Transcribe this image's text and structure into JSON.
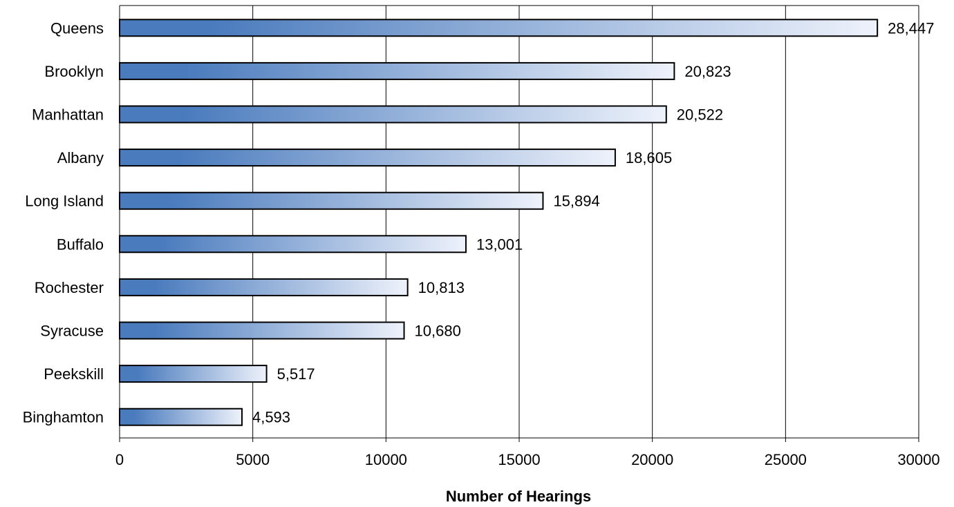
{
  "chart_data": {
    "type": "bar",
    "orientation": "horizontal",
    "title": "",
    "xlabel": "Number of Hearings",
    "ylabel": "",
    "categories": [
      "Queens",
      "Brooklyn",
      "Manhattan",
      "Albany",
      "Long Island",
      "Buffalo",
      "Rochester",
      "Syracuse",
      "Peekskill",
      "Binghamton"
    ],
    "values": [
      28447,
      20823,
      20522,
      18605,
      15894,
      13001,
      10813,
      10680,
      5517,
      4593
    ],
    "value_labels": [
      "28,447",
      "20,823",
      "20,522",
      "18,605",
      "15,894",
      "13,001",
      "10,813",
      "10,680",
      "5,517",
      "4,593"
    ],
    "xlim": [
      0,
      30000
    ],
    "xticks": [
      0,
      5000,
      10000,
      15000,
      20000,
      25000,
      30000
    ],
    "xtick_labels": [
      "0",
      "5000",
      "10000",
      "15000",
      "20000",
      "25000",
      "30000"
    ],
    "grid": "vertical",
    "legend": "none",
    "colors": {
      "bar_gradient_start": "#4a7bbd",
      "bar_gradient_end": "#eef2fb",
      "bar_border": "#000000",
      "grid": "#000000",
      "text": "#000000"
    }
  }
}
